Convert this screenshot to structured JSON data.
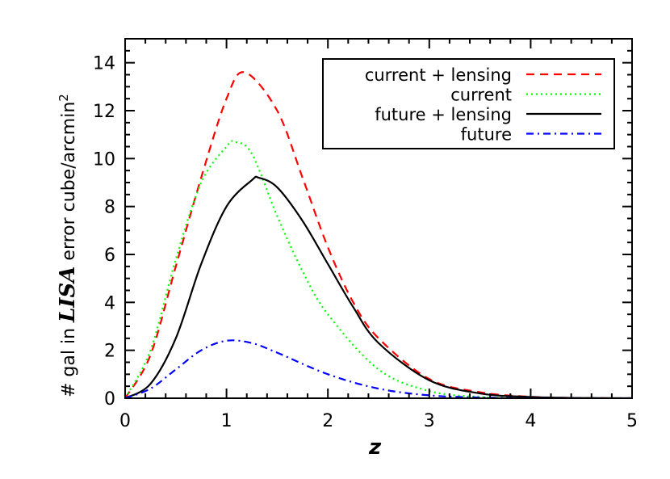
{
  "chart_data": {
    "type": "line",
    "title": "",
    "xlabel": "z",
    "ylabel_parts": [
      "# gal in ",
      "LISA",
      " error cube/arcmin",
      "2"
    ],
    "xlim": [
      0,
      5
    ],
    "ylim": [
      0,
      15
    ],
    "xticks": [
      "0",
      "1",
      "2",
      "3",
      "4",
      "5"
    ],
    "yticks": [
      "0",
      "2",
      "4",
      "6",
      "8",
      "10",
      "12",
      "14"
    ],
    "grid": false,
    "legend_position": "top-right",
    "series": [
      {
        "name": "current + lensing",
        "color": "#ff0000",
        "dash": "dashed",
        "x": [
          0,
          0.25,
          0.5,
          0.75,
          1,
          1.18,
          1.5,
          1.75,
          2,
          2.25,
          2.5,
          3,
          3.5,
          4,
          4.5,
          5
        ],
        "y": [
          0,
          1.8,
          5.5,
          9.2,
          12.5,
          13.6,
          12.0,
          9.2,
          6.3,
          4.0,
          2.5,
          0.8,
          0.25,
          0.06,
          0.01,
          0
        ]
      },
      {
        "name": "current",
        "color": "#00ff00",
        "dash": "dotted",
        "x": [
          0,
          0.25,
          0.5,
          0.75,
          1,
          1.08,
          1.25,
          1.5,
          1.75,
          2,
          2.5,
          3,
          3.5,
          4,
          5
        ],
        "y": [
          0,
          2.0,
          5.8,
          9.0,
          10.5,
          10.7,
          10.2,
          7.6,
          5.3,
          3.5,
          1.2,
          0.3,
          0.05,
          0.01,
          0
        ]
      },
      {
        "name": "future + lensing",
        "color": "#000000",
        "dash": "solid",
        "x": [
          0,
          0.25,
          0.5,
          0.75,
          1,
          1.25,
          1.32,
          1.5,
          1.75,
          2,
          2.25,
          2.5,
          3,
          3.5,
          4,
          4.5,
          5
        ],
        "y": [
          0,
          0.6,
          2.5,
          5.6,
          8.0,
          9.1,
          9.2,
          8.8,
          7.4,
          5.6,
          3.8,
          2.3,
          0.75,
          0.2,
          0.05,
          0.01,
          0
        ]
      },
      {
        "name": "future",
        "color": "#0000ff",
        "dash": "dashdot",
        "x": [
          0,
          0.25,
          0.5,
          0.75,
          1,
          1.25,
          1.5,
          2,
          2.5,
          3,
          3.5,
          4,
          5
        ],
        "y": [
          0,
          0.4,
          1.2,
          2.0,
          2.4,
          2.3,
          1.9,
          1.0,
          0.4,
          0.12,
          0.03,
          0.005,
          0
        ]
      }
    ]
  }
}
